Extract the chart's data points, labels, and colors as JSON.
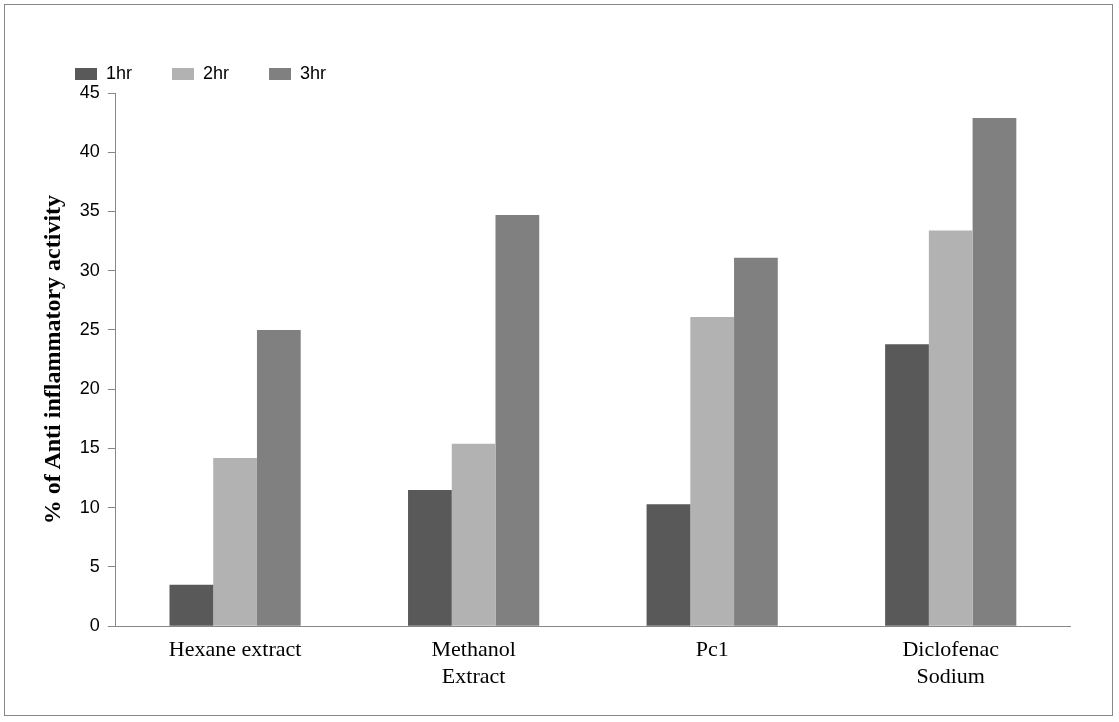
{
  "chart_data": {
    "type": "bar",
    "ylabel": "% of Anti inflammatory activity",
    "categories": [
      "Hexane extract",
      "Methanol\nExtract",
      "Pc1",
      "Diclofenac\nSodium"
    ],
    "series": [
      {
        "name": "1hr",
        "color": "#595959",
        "values": [
          3.5,
          11.5,
          10.3,
          23.8
        ]
      },
      {
        "name": "2hr",
        "color": "#b2b2b2",
        "values": [
          14.2,
          15.4,
          26.1,
          33.4
        ]
      },
      {
        "name": "3hr",
        "color": "#808080",
        "values": [
          25.0,
          34.7,
          31.1,
          42.9
        ]
      }
    ],
    "ylim": [
      0,
      45
    ],
    "yticks": [
      0,
      5,
      10,
      15,
      20,
      25,
      30,
      35,
      40,
      45
    ],
    "grid": false,
    "legend": "top"
  }
}
